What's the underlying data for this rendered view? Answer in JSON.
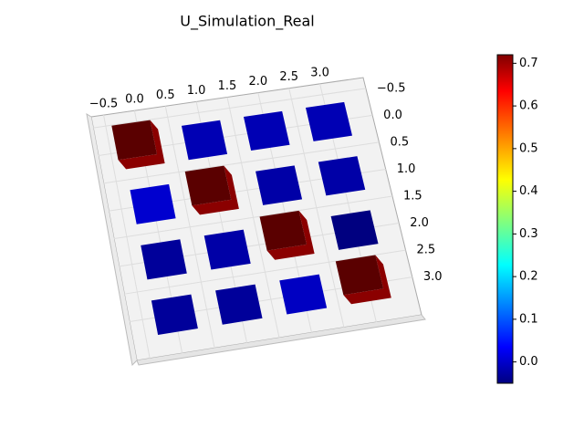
{
  "chart_data": {
    "type": "bar3d",
    "title": "U_Simulation_Real",
    "values": [
      [
        0.72,
        -0.01,
        -0.01,
        -0.01
      ],
      [
        0.01,
        0.72,
        -0.02,
        -0.02
      ],
      [
        -0.03,
        -0.02,
        0.72,
        -0.05
      ],
      [
        -0.03,
        -0.03,
        0.0,
        0.72
      ]
    ],
    "top_color": "#5a0000",
    "side_color": "#8b0000",
    "xticks": [
      {
        "value": -0.5,
        "label": "−0.5"
      },
      {
        "value": 0,
        "label": "0.0"
      },
      {
        "value": 0.5,
        "label": "0.5"
      },
      {
        "value": 1,
        "label": "1.0"
      },
      {
        "value": 1.5,
        "label": "1.5"
      },
      {
        "value": 2,
        "label": "2.0"
      },
      {
        "value": 2.5,
        "label": "2.5"
      },
      {
        "value": 3,
        "label": "3.0"
      }
    ],
    "yticks": [
      {
        "value": -0.5,
        "label": "−0.5"
      },
      {
        "value": 0,
        "label": "0.0"
      },
      {
        "value": 0.5,
        "label": "0.5"
      },
      {
        "value": 1,
        "label": "1.0"
      },
      {
        "value": 1.5,
        "label": "1.5"
      },
      {
        "value": 2,
        "label": "2.0"
      },
      {
        "value": 2.5,
        "label": "2.5"
      },
      {
        "value": 3,
        "label": "3.0"
      }
    ],
    "colormap": "jet",
    "clim": [
      -0.05,
      0.72
    ],
    "cticks": [
      {
        "value": 0,
        "label": "0.0"
      },
      {
        "value": 0.1,
        "label": "0.1"
      },
      {
        "value": 0.2,
        "label": "0.2"
      },
      {
        "value": 0.3,
        "label": "0.3"
      },
      {
        "value": 0.4,
        "label": "0.4"
      },
      {
        "value": 0.5,
        "label": "0.5"
      },
      {
        "value": 0.6,
        "label": "0.6"
      },
      {
        "value": 0.7,
        "label": "0.7"
      }
    ]
  }
}
